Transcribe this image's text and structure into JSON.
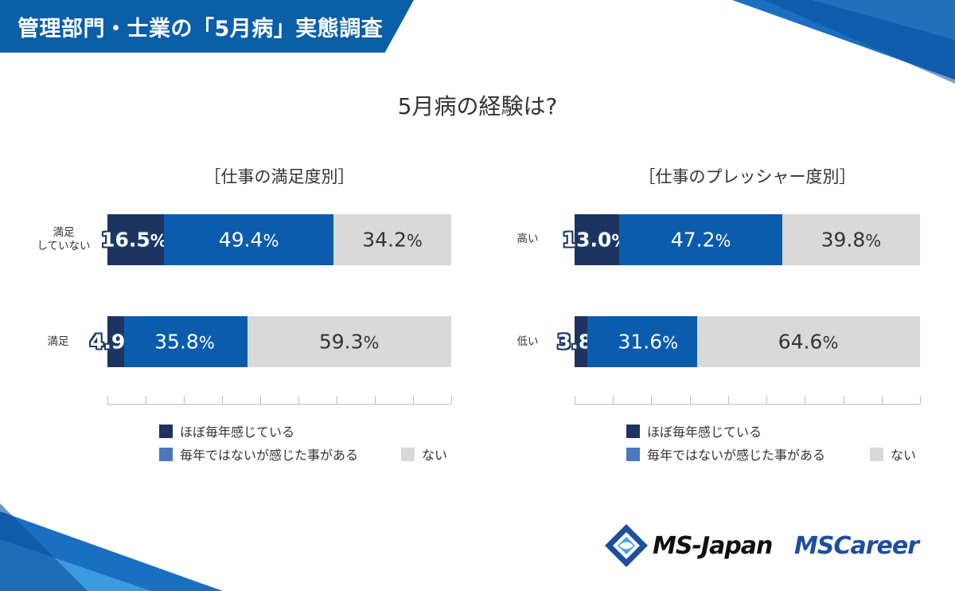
{
  "header": {
    "title": "管理部門・士業の「5月病」実態調査"
  },
  "main_title": "5月病の経験は?",
  "logos": {
    "ms_japan": "MS-Japan",
    "ms_career": "MSCareer"
  },
  "colors": {
    "dark": "#1d3461",
    "mid": "#0b5cad",
    "light": "#d9d9d9",
    "legend_mid": "#4a77bf"
  },
  "legend": [
    {
      "label": "ほぼ毎年感じている",
      "color": "#1d3461"
    },
    {
      "label": "毎年ではないが感じた事がある",
      "color": "#4a77bf"
    },
    {
      "label": "ない",
      "color": "#d9d9d9"
    }
  ],
  "chart_data": [
    {
      "type": "bar",
      "orientation": "horizontal-stacked-100",
      "title": "［仕事の満足度別］",
      "categories": [
        "満足\nしていない",
        "満足"
      ],
      "series": [
        {
          "name": "ほぼ毎年感じている",
          "values": [
            16.5,
            4.9
          ]
        },
        {
          "name": "毎年ではないが感じた事がある",
          "values": [
            49.4,
            35.8
          ]
        },
        {
          "name": "ない",
          "values": [
            34.2,
            59.3
          ]
        }
      ],
      "xlim": [
        0,
        100
      ],
      "legend": "bottom"
    },
    {
      "type": "bar",
      "orientation": "horizontal-stacked-100",
      "title": "［仕事のプレッシャー度別］",
      "categories": [
        "高い",
        "低い"
      ],
      "series": [
        {
          "name": "ほぼ毎年感じている",
          "values": [
            13.0,
            3.8
          ]
        },
        {
          "name": "毎年ではないが感じた事がある",
          "values": [
            47.2,
            31.6
          ]
        },
        {
          "name": "ない",
          "values": [
            39.8,
            64.6
          ]
        }
      ],
      "xlim": [
        0,
        100
      ],
      "legend": "bottom"
    }
  ]
}
